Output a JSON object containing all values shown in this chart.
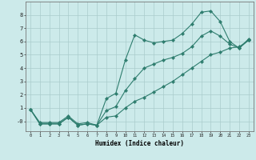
{
  "xlabel": "Humidex (Indice chaleur)",
  "bg_color": "#cceaea",
  "grid_color": "#aacccc",
  "line_color": "#2e7d6e",
  "xlim": [
    -0.5,
    23.5
  ],
  "ylim": [
    -0.75,
    9.0
  ],
  "xticks": [
    0,
    1,
    2,
    3,
    4,
    5,
    6,
    7,
    8,
    9,
    10,
    11,
    12,
    13,
    14,
    15,
    16,
    17,
    18,
    19,
    20,
    21,
    22,
    23
  ],
  "yticks": [
    0,
    1,
    2,
    3,
    4,
    5,
    6,
    7,
    8
  ],
  "ytick_labels": [
    "-0",
    "1",
    "2",
    "3",
    "4",
    "5",
    "6",
    "7",
    "8"
  ],
  "line1_x": [
    0,
    1,
    2,
    3,
    4,
    5,
    6,
    7,
    8,
    9,
    10,
    11,
    12,
    13,
    14,
    15,
    16,
    17,
    18,
    19,
    20,
    21,
    22,
    23
  ],
  "line1_y": [
    0.9,
    -0.2,
    -0.2,
    -0.2,
    0.3,
    -0.3,
    -0.2,
    -0.3,
    1.7,
    2.1,
    4.6,
    6.5,
    6.1,
    5.9,
    6.0,
    6.1,
    6.6,
    7.3,
    8.2,
    8.3,
    7.5,
    6.0,
    5.5,
    6.2
  ],
  "line2_x": [
    0,
    1,
    2,
    3,
    4,
    5,
    6,
    7,
    8,
    9,
    10,
    11,
    12,
    13,
    14,
    15,
    16,
    17,
    18,
    19,
    20,
    21,
    22,
    23
  ],
  "line2_y": [
    0.9,
    -0.2,
    -0.2,
    -0.2,
    0.3,
    -0.3,
    -0.2,
    -0.3,
    0.3,
    0.4,
    1.0,
    1.5,
    1.8,
    2.2,
    2.6,
    3.0,
    3.5,
    4.0,
    4.5,
    5.0,
    5.2,
    5.5,
    5.6,
    6.1
  ],
  "line3_x": [
    0,
    1,
    2,
    3,
    4,
    5,
    6,
    7,
    8,
    9,
    10,
    11,
    12,
    13,
    14,
    15,
    16,
    17,
    18,
    19,
    20,
    21,
    22,
    23
  ],
  "line3_y": [
    0.9,
    -0.1,
    -0.1,
    -0.1,
    0.4,
    -0.2,
    -0.1,
    -0.3,
    0.8,
    1.1,
    2.3,
    3.2,
    4.0,
    4.3,
    4.6,
    4.8,
    5.1,
    5.6,
    6.4,
    6.8,
    6.4,
    5.8,
    5.5,
    6.1
  ]
}
